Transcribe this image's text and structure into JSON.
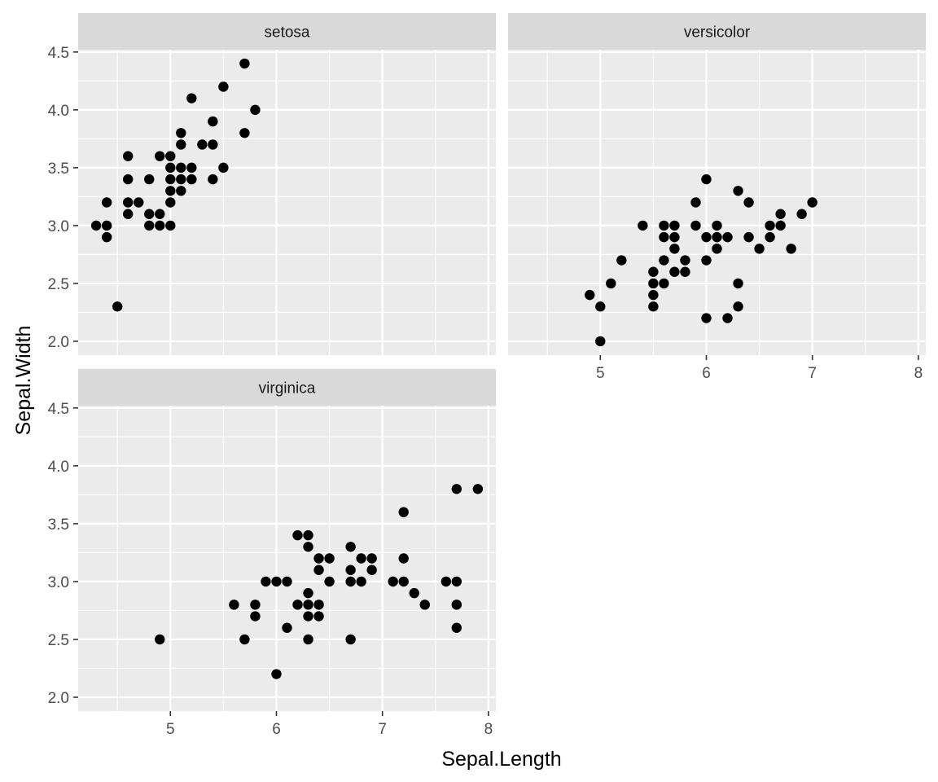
{
  "chart_data": {
    "type": "scatter",
    "xlabel": "Sepal.Length",
    "ylabel": "Sepal.Width",
    "xlim": [
      4.13,
      8.07
    ],
    "ylim": [
      1.88,
      4.52
    ],
    "x_ticks": [
      "5",
      "6",
      "7",
      "8"
    ],
    "x_tick_values": [
      5,
      6,
      7,
      8
    ],
    "y_ticks": [
      "2.0",
      "2.5",
      "3.0",
      "3.5",
      "4.0",
      "4.5"
    ],
    "y_tick_values": [
      2.0,
      2.5,
      3.0,
      3.5,
      4.0,
      4.5
    ],
    "grid": true,
    "colors": {
      "point": "#000000",
      "panel": "#EBEBEB",
      "strip": "#D9D9D9",
      "grid": "#FFFFFF"
    },
    "facets": [
      {
        "label": "setosa",
        "points": [
          [
            4.3,
            3.0
          ],
          [
            4.4,
            2.9
          ],
          [
            4.4,
            3.0
          ],
          [
            4.4,
            3.2
          ],
          [
            4.5,
            2.3
          ],
          [
            4.6,
            3.1
          ],
          [
            4.6,
            3.2
          ],
          [
            4.6,
            3.4
          ],
          [
            4.6,
            3.6
          ],
          [
            4.7,
            3.2
          ],
          [
            4.8,
            3.0
          ],
          [
            4.8,
            3.1
          ],
          [
            4.8,
            3.4
          ],
          [
            4.9,
            3.0
          ],
          [
            4.9,
            3.1
          ],
          [
            4.9,
            3.6
          ],
          [
            5.0,
            3.0
          ],
          [
            5.0,
            3.2
          ],
          [
            5.0,
            3.3
          ],
          [
            5.0,
            3.4
          ],
          [
            5.0,
            3.5
          ],
          [
            5.0,
            3.6
          ],
          [
            5.1,
            3.3
          ],
          [
            5.1,
            3.4
          ],
          [
            5.1,
            3.5
          ],
          [
            5.1,
            3.7
          ],
          [
            5.1,
            3.8
          ],
          [
            5.2,
            3.4
          ],
          [
            5.2,
            3.5
          ],
          [
            5.2,
            4.1
          ],
          [
            5.3,
            3.7
          ],
          [
            5.4,
            3.4
          ],
          [
            5.4,
            3.7
          ],
          [
            5.4,
            3.9
          ],
          [
            5.5,
            3.5
          ],
          [
            5.5,
            4.2
          ],
          [
            5.7,
            3.8
          ],
          [
            5.7,
            4.4
          ],
          [
            5.8,
            4.0
          ]
        ]
      },
      {
        "label": "versicolor",
        "points": [
          [
            4.9,
            2.4
          ],
          [
            5.0,
            2.0
          ],
          [
            5.0,
            2.3
          ],
          [
            5.1,
            2.5
          ],
          [
            5.2,
            2.7
          ],
          [
            5.4,
            3.0
          ],
          [
            5.5,
            2.3
          ],
          [
            5.5,
            2.4
          ],
          [
            5.5,
            2.5
          ],
          [
            5.5,
            2.6
          ],
          [
            5.6,
            2.5
          ],
          [
            5.6,
            2.7
          ],
          [
            5.6,
            2.9
          ],
          [
            5.6,
            3.0
          ],
          [
            5.7,
            2.6
          ],
          [
            5.7,
            2.8
          ],
          [
            5.7,
            2.9
          ],
          [
            5.7,
            3.0
          ],
          [
            5.8,
            2.6
          ],
          [
            5.8,
            2.7
          ],
          [
            5.9,
            3.0
          ],
          [
            5.9,
            3.2
          ],
          [
            6.0,
            2.2
          ],
          [
            6.0,
            2.7
          ],
          [
            6.0,
            2.9
          ],
          [
            6.0,
            3.4
          ],
          [
            6.1,
            2.8
          ],
          [
            6.1,
            2.9
          ],
          [
            6.1,
            3.0
          ],
          [
            6.2,
            2.2
          ],
          [
            6.2,
            2.9
          ],
          [
            6.3,
            2.3
          ],
          [
            6.3,
            2.5
          ],
          [
            6.3,
            3.3
          ],
          [
            6.4,
            2.9
          ],
          [
            6.4,
            3.2
          ],
          [
            6.5,
            2.8
          ],
          [
            6.6,
            2.9
          ],
          [
            6.6,
            3.0
          ],
          [
            6.7,
            3.0
          ],
          [
            6.7,
            3.1
          ],
          [
            6.8,
            2.8
          ],
          [
            6.9,
            3.1
          ],
          [
            7.0,
            3.2
          ]
        ]
      },
      {
        "label": "virginica",
        "points": [
          [
            4.9,
            2.5
          ],
          [
            5.6,
            2.8
          ],
          [
            5.7,
            2.5
          ],
          [
            5.8,
            2.7
          ],
          [
            5.8,
            2.8
          ],
          [
            5.9,
            3.0
          ],
          [
            6.0,
            2.2
          ],
          [
            6.0,
            3.0
          ],
          [
            6.1,
            2.6
          ],
          [
            6.1,
            3.0
          ],
          [
            6.2,
            2.8
          ],
          [
            6.2,
            3.4
          ],
          [
            6.3,
            2.5
          ],
          [
            6.3,
            2.7
          ],
          [
            6.3,
            2.8
          ],
          [
            6.3,
            2.9
          ],
          [
            6.3,
            3.3
          ],
          [
            6.3,
            3.4
          ],
          [
            6.4,
            2.7
          ],
          [
            6.4,
            2.8
          ],
          [
            6.4,
            3.1
          ],
          [
            6.4,
            3.2
          ],
          [
            6.5,
            3.0
          ],
          [
            6.5,
            3.2
          ],
          [
            6.7,
            2.5
          ],
          [
            6.7,
            3.0
          ],
          [
            6.7,
            3.1
          ],
          [
            6.7,
            3.3
          ],
          [
            6.8,
            3.0
          ],
          [
            6.8,
            3.2
          ],
          [
            6.9,
            3.1
          ],
          [
            6.9,
            3.2
          ],
          [
            7.1,
            3.0
          ],
          [
            7.2,
            3.0
          ],
          [
            7.2,
            3.2
          ],
          [
            7.2,
            3.6
          ],
          [
            7.3,
            2.9
          ],
          [
            7.4,
            2.8
          ],
          [
            7.6,
            3.0
          ],
          [
            7.7,
            2.6
          ],
          [
            7.7,
            2.8
          ],
          [
            7.7,
            3.0
          ],
          [
            7.7,
            3.8
          ],
          [
            7.9,
            3.8
          ]
        ]
      }
    ]
  }
}
